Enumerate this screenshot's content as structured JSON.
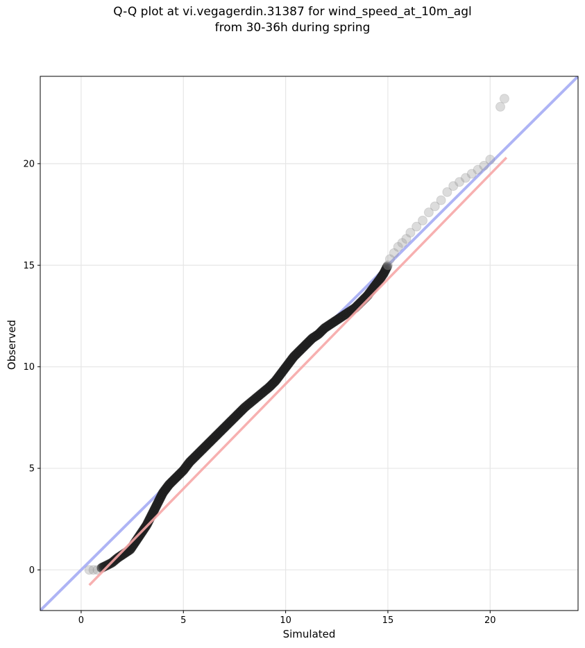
{
  "chart_data": {
    "type": "scatter",
    "title_line1": "Q-Q plot at vi.vegagerdin.31387 for wind_speed_at_10m_agl",
    "title_line2": "from 30-36h during spring",
    "xlabel": "Simulated",
    "ylabel": "Observed",
    "xlim": [
      -2,
      24.3
    ],
    "ylim": [
      -2,
      24.3
    ],
    "xticks": [
      0,
      5,
      10,
      15,
      20
    ],
    "yticks": [
      0,
      5,
      10,
      15,
      20
    ],
    "grid": true,
    "identity_line": {
      "name": "",
      "color": "#aab0f5"
    },
    "fit_line": {
      "color": "#f7a8a8",
      "x": [
        0.4,
        20.8
      ],
      "y": [
        -0.75,
        20.3
      ]
    },
    "qq_points": {
      "x": [
        0.4,
        0.6,
        0.8,
        1.0,
        1.2,
        1.5,
        1.8,
        2.1,
        2.4,
        2.6,
        2.8,
        3.0,
        3.2,
        3.4,
        3.6,
        3.8,
        4.0,
        4.3,
        4.6,
        5.0,
        5.3,
        5.6,
        5.9,
        6.2,
        6.5,
        6.8,
        7.1,
        7.4,
        7.7,
        8.0,
        8.3,
        8.6,
        8.9,
        9.2,
        9.5,
        9.8,
        10.1,
        10.4,
        10.7,
        11.0,
        11.3,
        11.6,
        11.9,
        12.2,
        12.5,
        12.8,
        13.1,
        13.4,
        13.7,
        14.0,
        14.3,
        14.6,
        14.8,
        15.0,
        15.1,
        15.3,
        15.5,
        15.7,
        15.9,
        16.1,
        16.4,
        16.7,
        17.0,
        17.3,
        17.6,
        17.9,
        18.2,
        18.5,
        18.8,
        19.1,
        19.4,
        19.7,
        20.0,
        20.5,
        20.7
      ],
      "y": [
        0.0,
        0.0,
        0.0,
        0.1,
        0.2,
        0.35,
        0.6,
        0.8,
        1.0,
        1.3,
        1.6,
        1.9,
        2.2,
        2.6,
        3.0,
        3.4,
        3.8,
        4.2,
        4.5,
        4.9,
        5.3,
        5.6,
        5.9,
        6.2,
        6.5,
        6.8,
        7.1,
        7.4,
        7.7,
        8.0,
        8.25,
        8.5,
        8.75,
        9.0,
        9.3,
        9.7,
        10.1,
        10.5,
        10.8,
        11.1,
        11.4,
        11.6,
        11.9,
        12.1,
        12.3,
        12.5,
        12.7,
        12.9,
        13.2,
        13.5,
        13.9,
        14.3,
        14.6,
        15.0,
        15.3,
        15.6,
        15.9,
        16.1,
        16.3,
        16.6,
        16.9,
        17.2,
        17.6,
        17.9,
        18.2,
        18.6,
        18.9,
        19.1,
        19.3,
        19.5,
        19.7,
        19.9,
        20.2,
        22.8,
        23.2
      ]
    }
  }
}
